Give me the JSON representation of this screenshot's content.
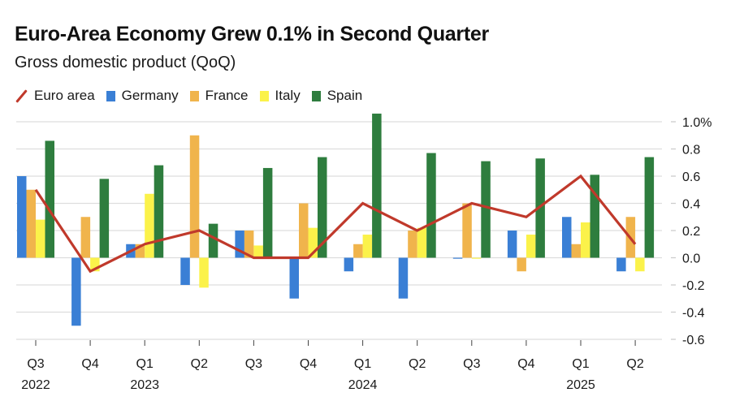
{
  "header": {
    "title": "Euro-Area Economy Grew 0.1% in Second Quarter",
    "subtitle": "Gross domestic product (QoQ)"
  },
  "legend": [
    {
      "name": "Euro area",
      "kind": "line",
      "color": "#c0392b"
    },
    {
      "name": "Germany",
      "kind": "bar",
      "color": "#3a7fd5"
    },
    {
      "name": "France",
      "kind": "bar",
      "color": "#f0b44c"
    },
    {
      "name": "Italy",
      "kind": "bar",
      "color": "#fbf24a"
    },
    {
      "name": "Spain",
      "kind": "bar",
      "color": "#2e7d3e"
    }
  ],
  "chart_data": {
    "type": "bar",
    "title": "Euro-Area Economy Grew 0.1% in Second Quarter",
    "subtitle": "Gross domestic product (QoQ)",
    "xlabel": "",
    "ylabel": "",
    "categories": [
      "Q3 2022",
      "Q4 2022",
      "Q1 2023",
      "Q2 2023",
      "Q3 2023",
      "Q4 2023",
      "Q1 2024",
      "Q2 2024",
      "Q3 2024",
      "Q4 2024",
      "Q1 2025",
      "Q2 2025"
    ],
    "x_tick_labels": [
      {
        "quarter": "Q3",
        "year": "2022"
      },
      {
        "quarter": "Q4",
        "year": ""
      },
      {
        "quarter": "Q1",
        "year": "2023"
      },
      {
        "quarter": "Q2",
        "year": ""
      },
      {
        "quarter": "Q3",
        "year": ""
      },
      {
        "quarter": "Q4",
        "year": ""
      },
      {
        "quarter": "Q1",
        "year": "2024"
      },
      {
        "quarter": "Q2",
        "year": ""
      },
      {
        "quarter": "Q3",
        "year": ""
      },
      {
        "quarter": "Q4",
        "year": ""
      },
      {
        "quarter": "Q1",
        "year": "2025"
      },
      {
        "quarter": "Q2",
        "year": ""
      }
    ],
    "series": [
      {
        "name": "Germany",
        "type": "bar",
        "color": "#3a7fd5",
        "values": [
          0.6,
          -0.5,
          0.1,
          -0.2,
          0.2,
          -0.3,
          -0.1,
          -0.3,
          0.0,
          0.2,
          0.3,
          -0.1
        ]
      },
      {
        "name": "France",
        "type": "bar",
        "color": "#f0b44c",
        "values": [
          0.5,
          0.3,
          0.1,
          0.9,
          0.2,
          0.4,
          0.1,
          0.2,
          0.4,
          -0.1,
          0.1,
          0.3
        ]
      },
      {
        "name": "Italy",
        "type": "bar",
        "color": "#fbf24a",
        "values": [
          0.28,
          -0.1,
          0.47,
          -0.22,
          0.09,
          0.22,
          0.17,
          0.22,
          0.0,
          0.17,
          0.26,
          -0.1
        ]
      },
      {
        "name": "Spain",
        "type": "bar",
        "color": "#2e7d3e",
        "values": [
          0.86,
          0.58,
          0.68,
          0.25,
          0.66,
          0.74,
          1.06,
          0.77,
          0.71,
          0.73,
          0.61,
          0.74
        ]
      },
      {
        "name": "Euro area",
        "type": "line",
        "color": "#c0392b",
        "values": [
          0.5,
          -0.1,
          0.1,
          0.2,
          0.0,
          0.0,
          0.4,
          0.2,
          0.4,
          0.3,
          0.6,
          0.1
        ]
      }
    ],
    "ylim": [
      -0.6,
      1.0
    ],
    "y_ticks": [
      1.0,
      0.8,
      0.6,
      0.4,
      0.2,
      0.0,
      -0.2,
      -0.4,
      -0.6
    ],
    "y_tick_labels": [
      "1.0%",
      "0.8",
      "0.6",
      "0.4",
      "0.2",
      "0.0",
      "-0.2",
      "-0.4",
      "-0.6"
    ],
    "y_axis_position": "right",
    "grid": true,
    "legend_position": "top-left"
  }
}
